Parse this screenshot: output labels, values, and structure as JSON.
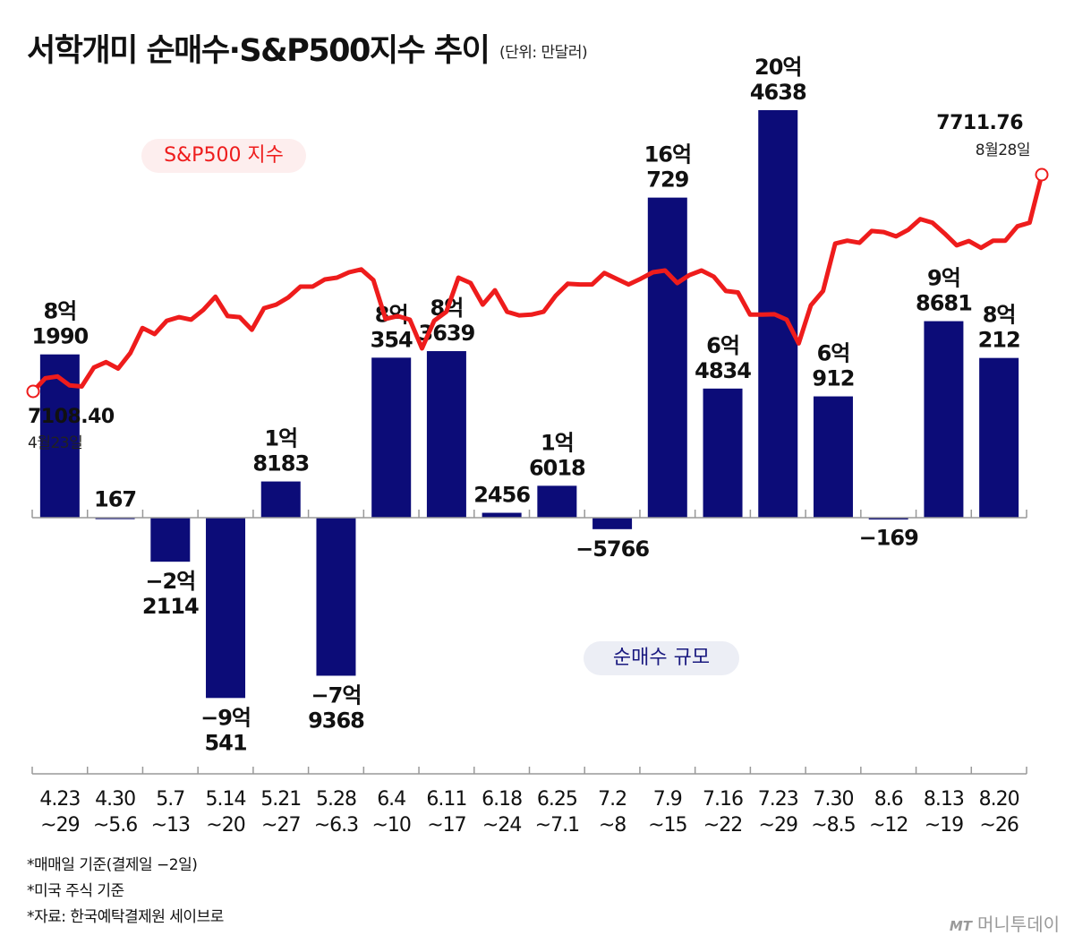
{
  "header": {
    "title": "서학개미 순매수·S&P500지수 추이",
    "unit": "(단위: 만달러)"
  },
  "legend": {
    "sp500": "S&P500 지수",
    "net": "순매수 규모"
  },
  "colors": {
    "bar": "#0c0c78",
    "line": "#ee1c1c",
    "axis": "#999999"
  },
  "footnotes": [
    "*매매일 기준(결제일 −2일)",
    "*미국 주식 기준",
    "*자료: 한국예탁결제원 세이브로"
  ],
  "logo": {
    "mark": "MT",
    "name": "머니투데이"
  },
  "chart_data": {
    "type": "bar",
    "categories": [
      [
        "4.23",
        "~29"
      ],
      [
        "4.30",
        "~5.6"
      ],
      [
        "5.7",
        "~13"
      ],
      [
        "5.14",
        "~20"
      ],
      [
        "5.21",
        "~27"
      ],
      [
        "5.28",
        "~6.3"
      ],
      [
        "6.4",
        "~10"
      ],
      [
        "6.11",
        "~17"
      ],
      [
        "6.18",
        "~24"
      ],
      [
        "6.25",
        "~7.1"
      ],
      [
        "7.2",
        "~8"
      ],
      [
        "7.9",
        "~15"
      ],
      [
        "7.16",
        "~22"
      ],
      [
        "7.23",
        "~29"
      ],
      [
        "7.30",
        "~8.5"
      ],
      [
        "8.6",
        "~12"
      ],
      [
        "8.13",
        "~19"
      ],
      [
        "8.20",
        "~26"
      ]
    ],
    "values": [
      81990,
      167,
      -22114,
      -90541,
      18183,
      -79368,
      80354,
      83639,
      2456,
      16018,
      -5766,
      160729,
      64834,
      204638,
      60912,
      -169,
      98681,
      80212
    ],
    "value_labels": [
      [
        "8억",
        "1990"
      ],
      [
        "167"
      ],
      [
        "−2억",
        "2114"
      ],
      [
        "−9억",
        "541"
      ],
      [
        "1억",
        "8183"
      ],
      [
        "−7억",
        "9368"
      ],
      [
        "8억",
        "354"
      ],
      [
        "8억",
        "3639"
      ],
      [
        "2456"
      ],
      [
        "1억",
        "6018"
      ],
      [
        "−5766"
      ],
      [
        "16억",
        "729"
      ],
      [
        "6억",
        "4834"
      ],
      [
        "20억",
        "4638"
      ],
      [
        "6억",
        "912"
      ],
      [
        "−169"
      ],
      [
        "9억",
        "8681"
      ],
      [
        "8억",
        "212"
      ]
    ],
    "line_series": {
      "name": "S&P500 지수",
      "start": {
        "value": "7108.40",
        "date": "4월23일"
      },
      "end": {
        "value": "7711.76",
        "date": "8월28일"
      },
      "values": [
        7108.4,
        7145,
        7150,
        7125,
        7122,
        7175,
        7190,
        7172,
        7215,
        7285,
        7268,
        7305,
        7315,
        7308,
        7335,
        7372,
        7318,
        7315,
        7280,
        7340,
        7350,
        7370,
        7400,
        7400,
        7420,
        7425,
        7440,
        7448,
        7418,
        7310,
        7318,
        7308,
        7228,
        7305,
        7330,
        7425,
        7410,
        7350,
        7390,
        7330,
        7320,
        7322,
        7330,
        7375,
        7408,
        7406,
        7406,
        7438,
        7422,
        7406,
        7422,
        7440,
        7445,
        7410,
        7432,
        7445,
        7428,
        7388,
        7384,
        7322,
        7322,
        7323,
        7308,
        7242,
        7348,
        7388,
        7520,
        7528,
        7522,
        7555,
        7552,
        7540,
        7558,
        7588,
        7578,
        7548,
        7515,
        7527,
        7508,
        7528,
        7528,
        7568,
        7578,
        7711.76
      ]
    },
    "ylim": [
      -100000,
      210000
    ],
    "grid": false,
    "legend_position": "inline"
  }
}
